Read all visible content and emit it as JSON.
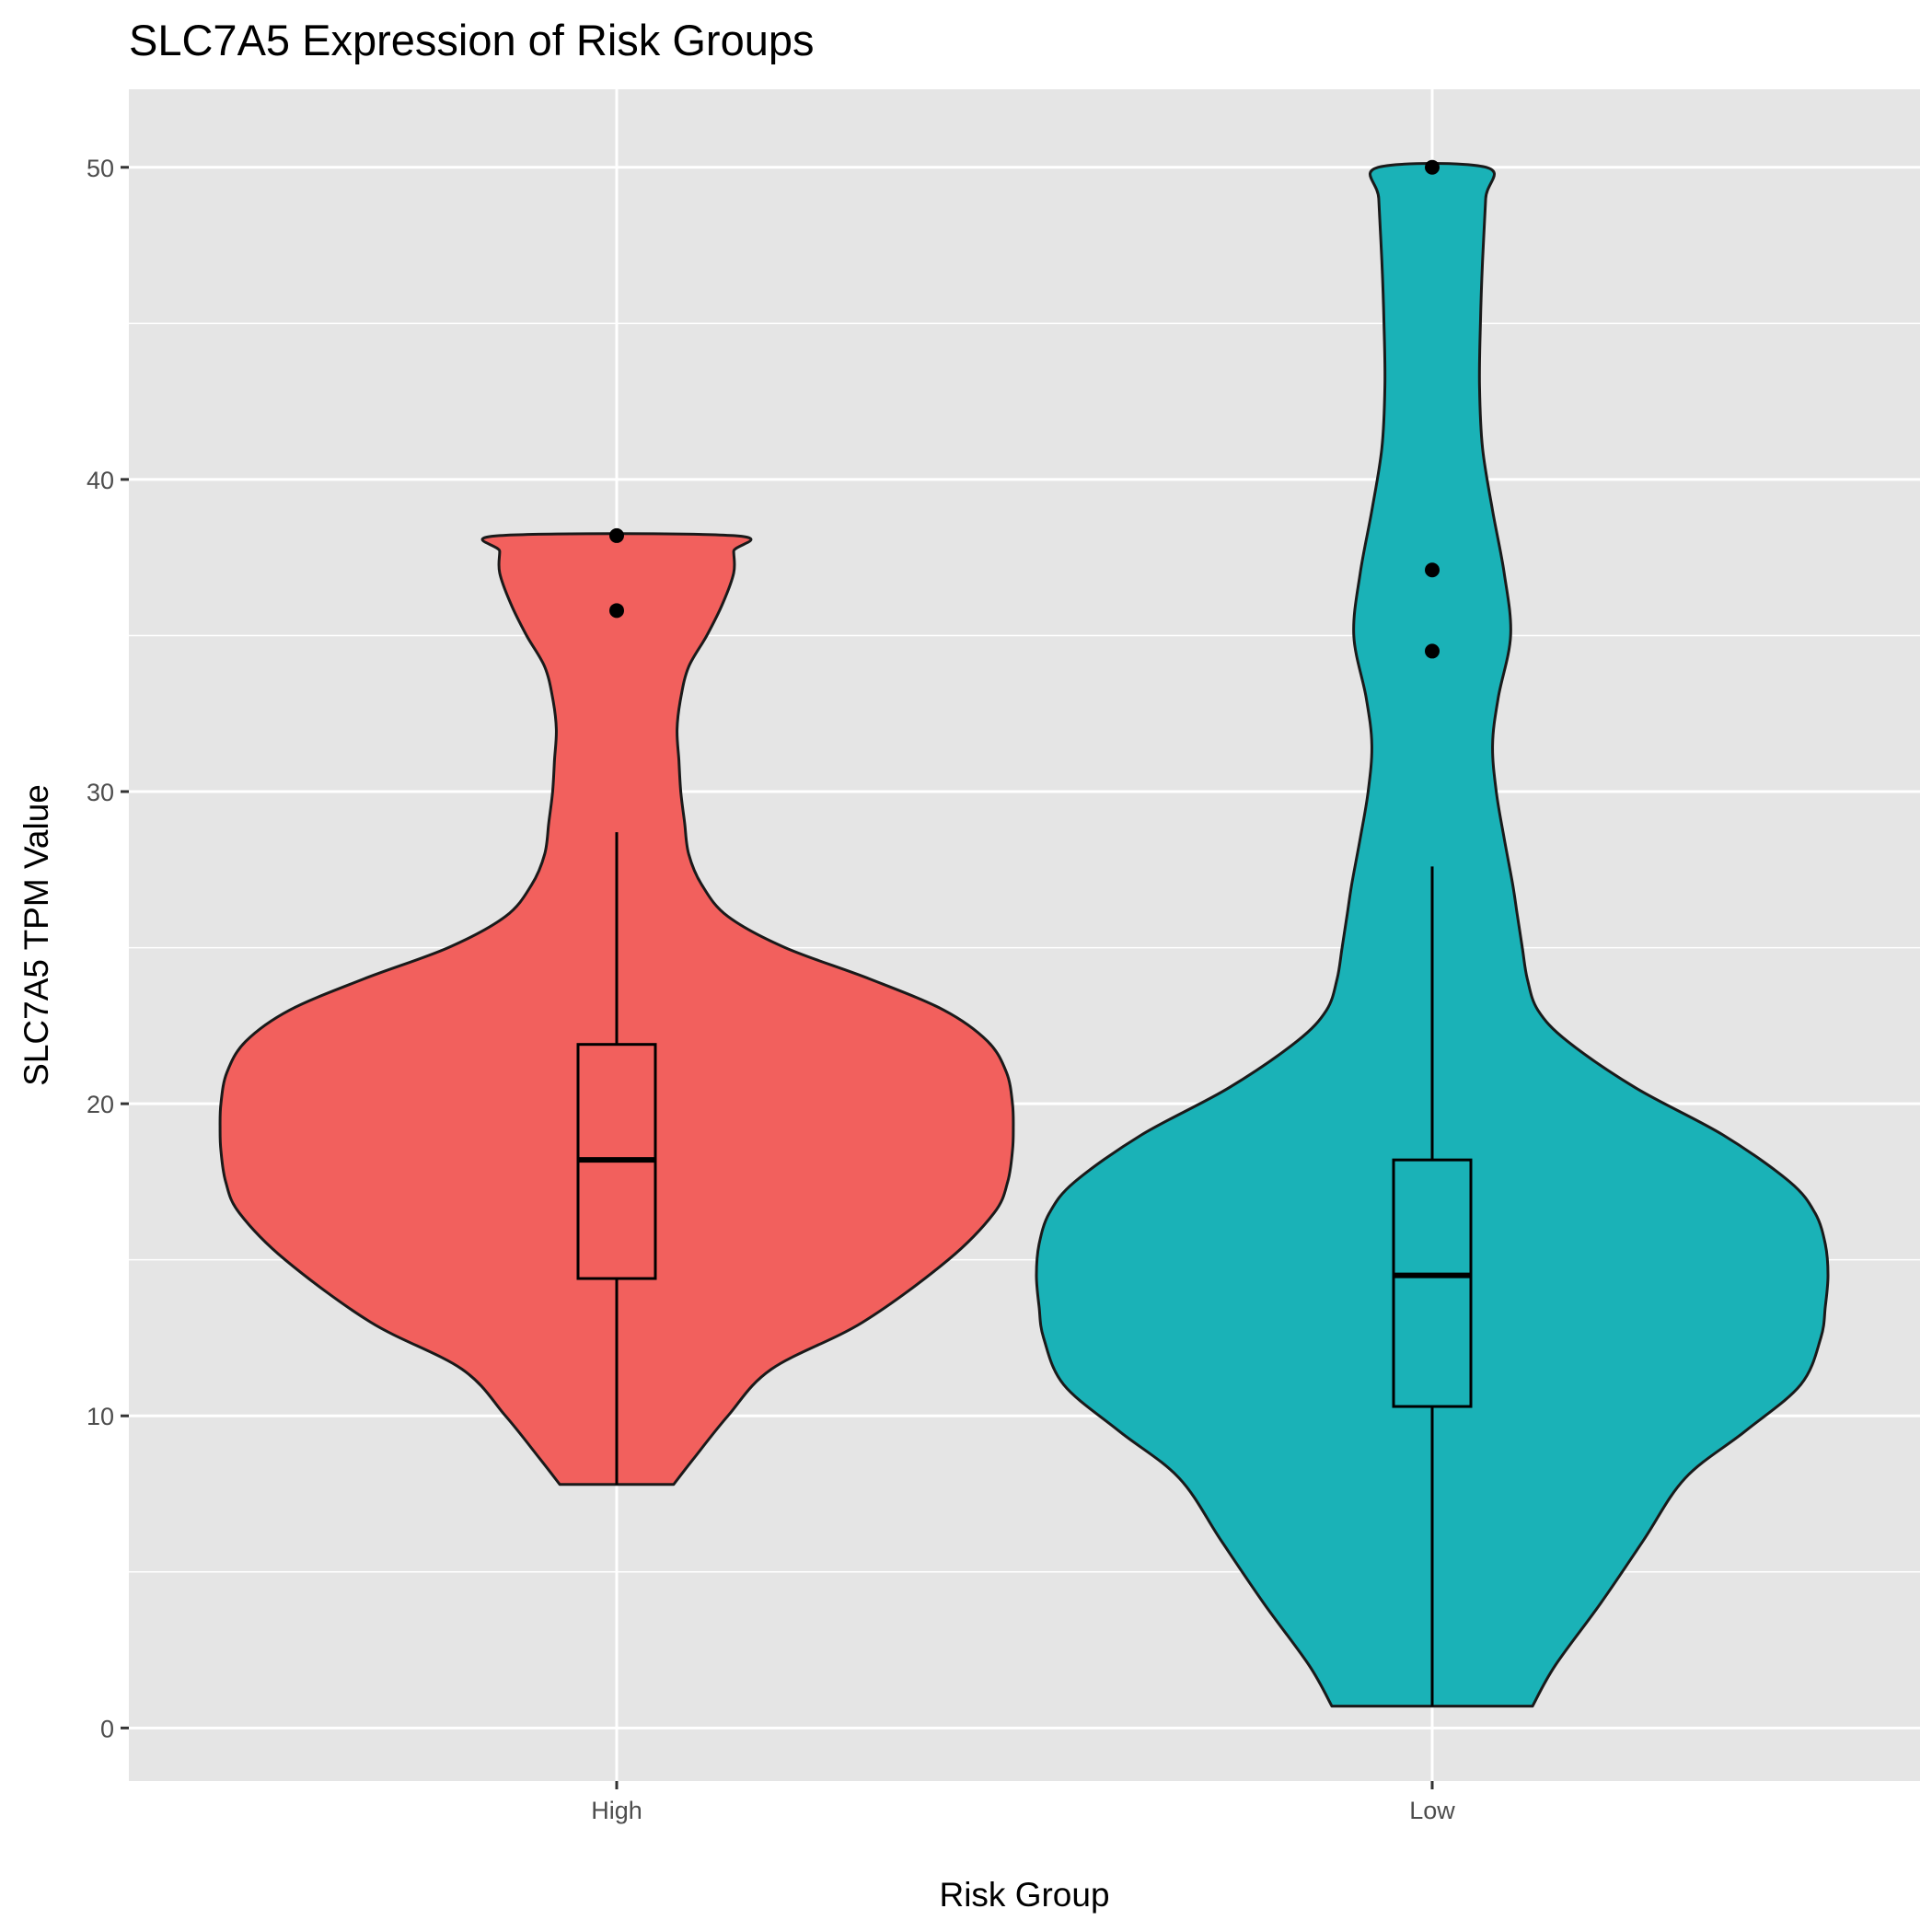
{
  "chart_data": {
    "type": "violin",
    "title": "SLC7A5 Expression of Risk Groups",
    "xlabel": "Risk Group",
    "ylabel": "SLC7A5 TPM Value",
    "categories": [
      "High",
      "Low"
    ],
    "ylim": [
      -1.7,
      52.5
    ],
    "y_ticks": [
      0,
      10,
      20,
      30,
      40,
      50
    ],
    "y_tick_labels": [
      "0",
      "10",
      "20",
      "30",
      "40",
      "50"
    ],
    "y_minor_ticks": [
      5,
      15,
      25,
      35,
      45
    ],
    "grid": true,
    "colors": {
      "panel_background": "#e5e5e5",
      "grid": "#ffffff",
      "outline": "#1a1a1a",
      "point": "#000000"
    },
    "groups": [
      {
        "name": "High",
        "color": "#f2605d",
        "box": {
          "whisker_low": 7.8,
          "q1": 14.4,
          "median": 18.2,
          "q3": 21.9,
          "whisker_high": 28.7
        },
        "outliers": [
          35.8,
          38.2
        ],
        "density": [
          [
            7.8,
            0.26
          ],
          [
            8.6,
            0.21
          ],
          [
            10.0,
            0.14
          ],
          [
            11.5,
            0.07
          ],
          [
            13.0,
            -0.06
          ],
          [
            15.0,
            -0.21
          ],
          [
            16.5,
            -0.36
          ],
          [
            17.5,
            -0.45
          ],
          [
            18.5,
            -0.5
          ],
          [
            19.2,
            -0.51
          ],
          [
            20.0,
            -0.5
          ],
          [
            21.0,
            -0.44
          ],
          [
            22.0,
            -0.33
          ],
          [
            23.0,
            -0.2
          ],
          [
            24.0,
            -0.07
          ],
          [
            25.0,
            0.05
          ],
          [
            26.0,
            0.14
          ],
          [
            27.0,
            0.19
          ],
          [
            28.0,
            0.22
          ],
          [
            29.0,
            0.23
          ],
          [
            30.0,
            0.24
          ],
          [
            31.0,
            0.245
          ],
          [
            32.0,
            0.25
          ],
          [
            33.0,
            0.24
          ],
          [
            34.0,
            0.22
          ],
          [
            35.0,
            0.18
          ],
          [
            36.0,
            0.15
          ],
          [
            37.0,
            0.13
          ],
          [
            37.7,
            0.13
          ],
          [
            38.2,
            0.13
          ]
        ]
      },
      {
        "name": "Low",
        "color": "#1ab2b7",
        "box": {
          "whisker_low": 0.7,
          "q1": 10.3,
          "median": 14.5,
          "q3": 18.2,
          "whisker_high": 27.6
        },
        "outliers": [
          34.5,
          37.1,
          50.0
        ],
        "density": [
          [
            0.7,
            0.16
          ],
          [
            2.0,
            0.12
          ],
          [
            4.0,
            0.05
          ],
          [
            6.0,
            -0.01
          ],
          [
            8.0,
            -0.07
          ],
          [
            9.5,
            -0.17
          ],
          [
            11.0,
            -0.32
          ],
          [
            12.5,
            -0.43
          ],
          [
            13.5,
            -0.47
          ],
          [
            14.5,
            -0.5
          ],
          [
            15.5,
            -0.47
          ],
          [
            16.5,
            -0.39
          ],
          [
            17.5,
            -0.28
          ],
          [
            19.0,
            -0.13
          ],
          [
            20.5,
            0.0
          ],
          [
            22.0,
            0.1
          ],
          [
            23.0,
            0.15
          ],
          [
            24.0,
            0.17
          ],
          [
            25.0,
            0.18
          ],
          [
            26.0,
            0.19
          ],
          [
            27.0,
            0.2
          ],
          [
            28.5,
            0.22
          ],
          [
            30.0,
            0.24
          ],
          [
            31.5,
            0.25
          ],
          [
            33.0,
            0.235
          ],
          [
            35.0,
            0.205
          ],
          [
            37.0,
            0.22
          ],
          [
            39.0,
            0.25
          ],
          [
            41.0,
            0.28
          ],
          [
            43.0,
            0.29
          ],
          [
            45.0,
            0.287
          ],
          [
            47.0,
            0.28
          ],
          [
            49.0,
            0.27
          ],
          [
            50.0,
            0.268
          ]
        ]
      }
    ]
  }
}
